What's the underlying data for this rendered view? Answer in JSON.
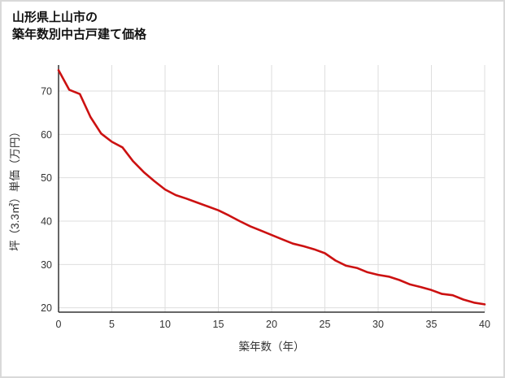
{
  "header": {
    "title_line1": "山形県上山市の",
    "title_line2": "築年数別中古戸建て価格"
  },
  "chart_data": {
    "type": "line",
    "title": "山形県上山市の築年数別中古戸建て価格",
    "xlabel": "築年数（年）",
    "ylabel": "坪（3.3㎡）単価（万円）",
    "x": [
      0,
      1,
      2,
      3,
      4,
      5,
      6,
      7,
      8,
      9,
      10,
      11,
      12,
      13,
      14,
      15,
      16,
      17,
      18,
      19,
      20,
      21,
      22,
      23,
      24,
      25,
      26,
      27,
      28,
      29,
      30,
      31,
      32,
      33,
      34,
      35,
      36,
      37,
      38,
      39,
      40
    ],
    "values": [
      74.8,
      70.3,
      69.3,
      64.0,
      60.2,
      58.3,
      57.0,
      53.8,
      51.3,
      49.2,
      47.3,
      46.0,
      45.2,
      44.3,
      43.4,
      42.5,
      41.3,
      40.0,
      38.8,
      37.8,
      36.8,
      35.8,
      34.8,
      34.2,
      33.5,
      32.6,
      30.9,
      29.7,
      29.2,
      28.2,
      27.6,
      27.2,
      26.4,
      25.4,
      24.8,
      24.1,
      23.2,
      22.9,
      21.9,
      21.2,
      20.8
    ],
    "xlim": [
      0,
      40
    ],
    "ylim": [
      19,
      76
    ],
    "xticks": [
      0,
      5,
      10,
      15,
      20,
      25,
      30,
      35,
      40
    ],
    "yticks": [
      20,
      30,
      40,
      50,
      60,
      70
    ],
    "grid": true,
    "legend": "none",
    "colors": {
      "line": "#cc1111",
      "grid": "#dedede",
      "axis": "#333333",
      "tick_text": "#333333",
      "title_text": "#111111",
      "page_border": "#d9d9d9"
    }
  }
}
